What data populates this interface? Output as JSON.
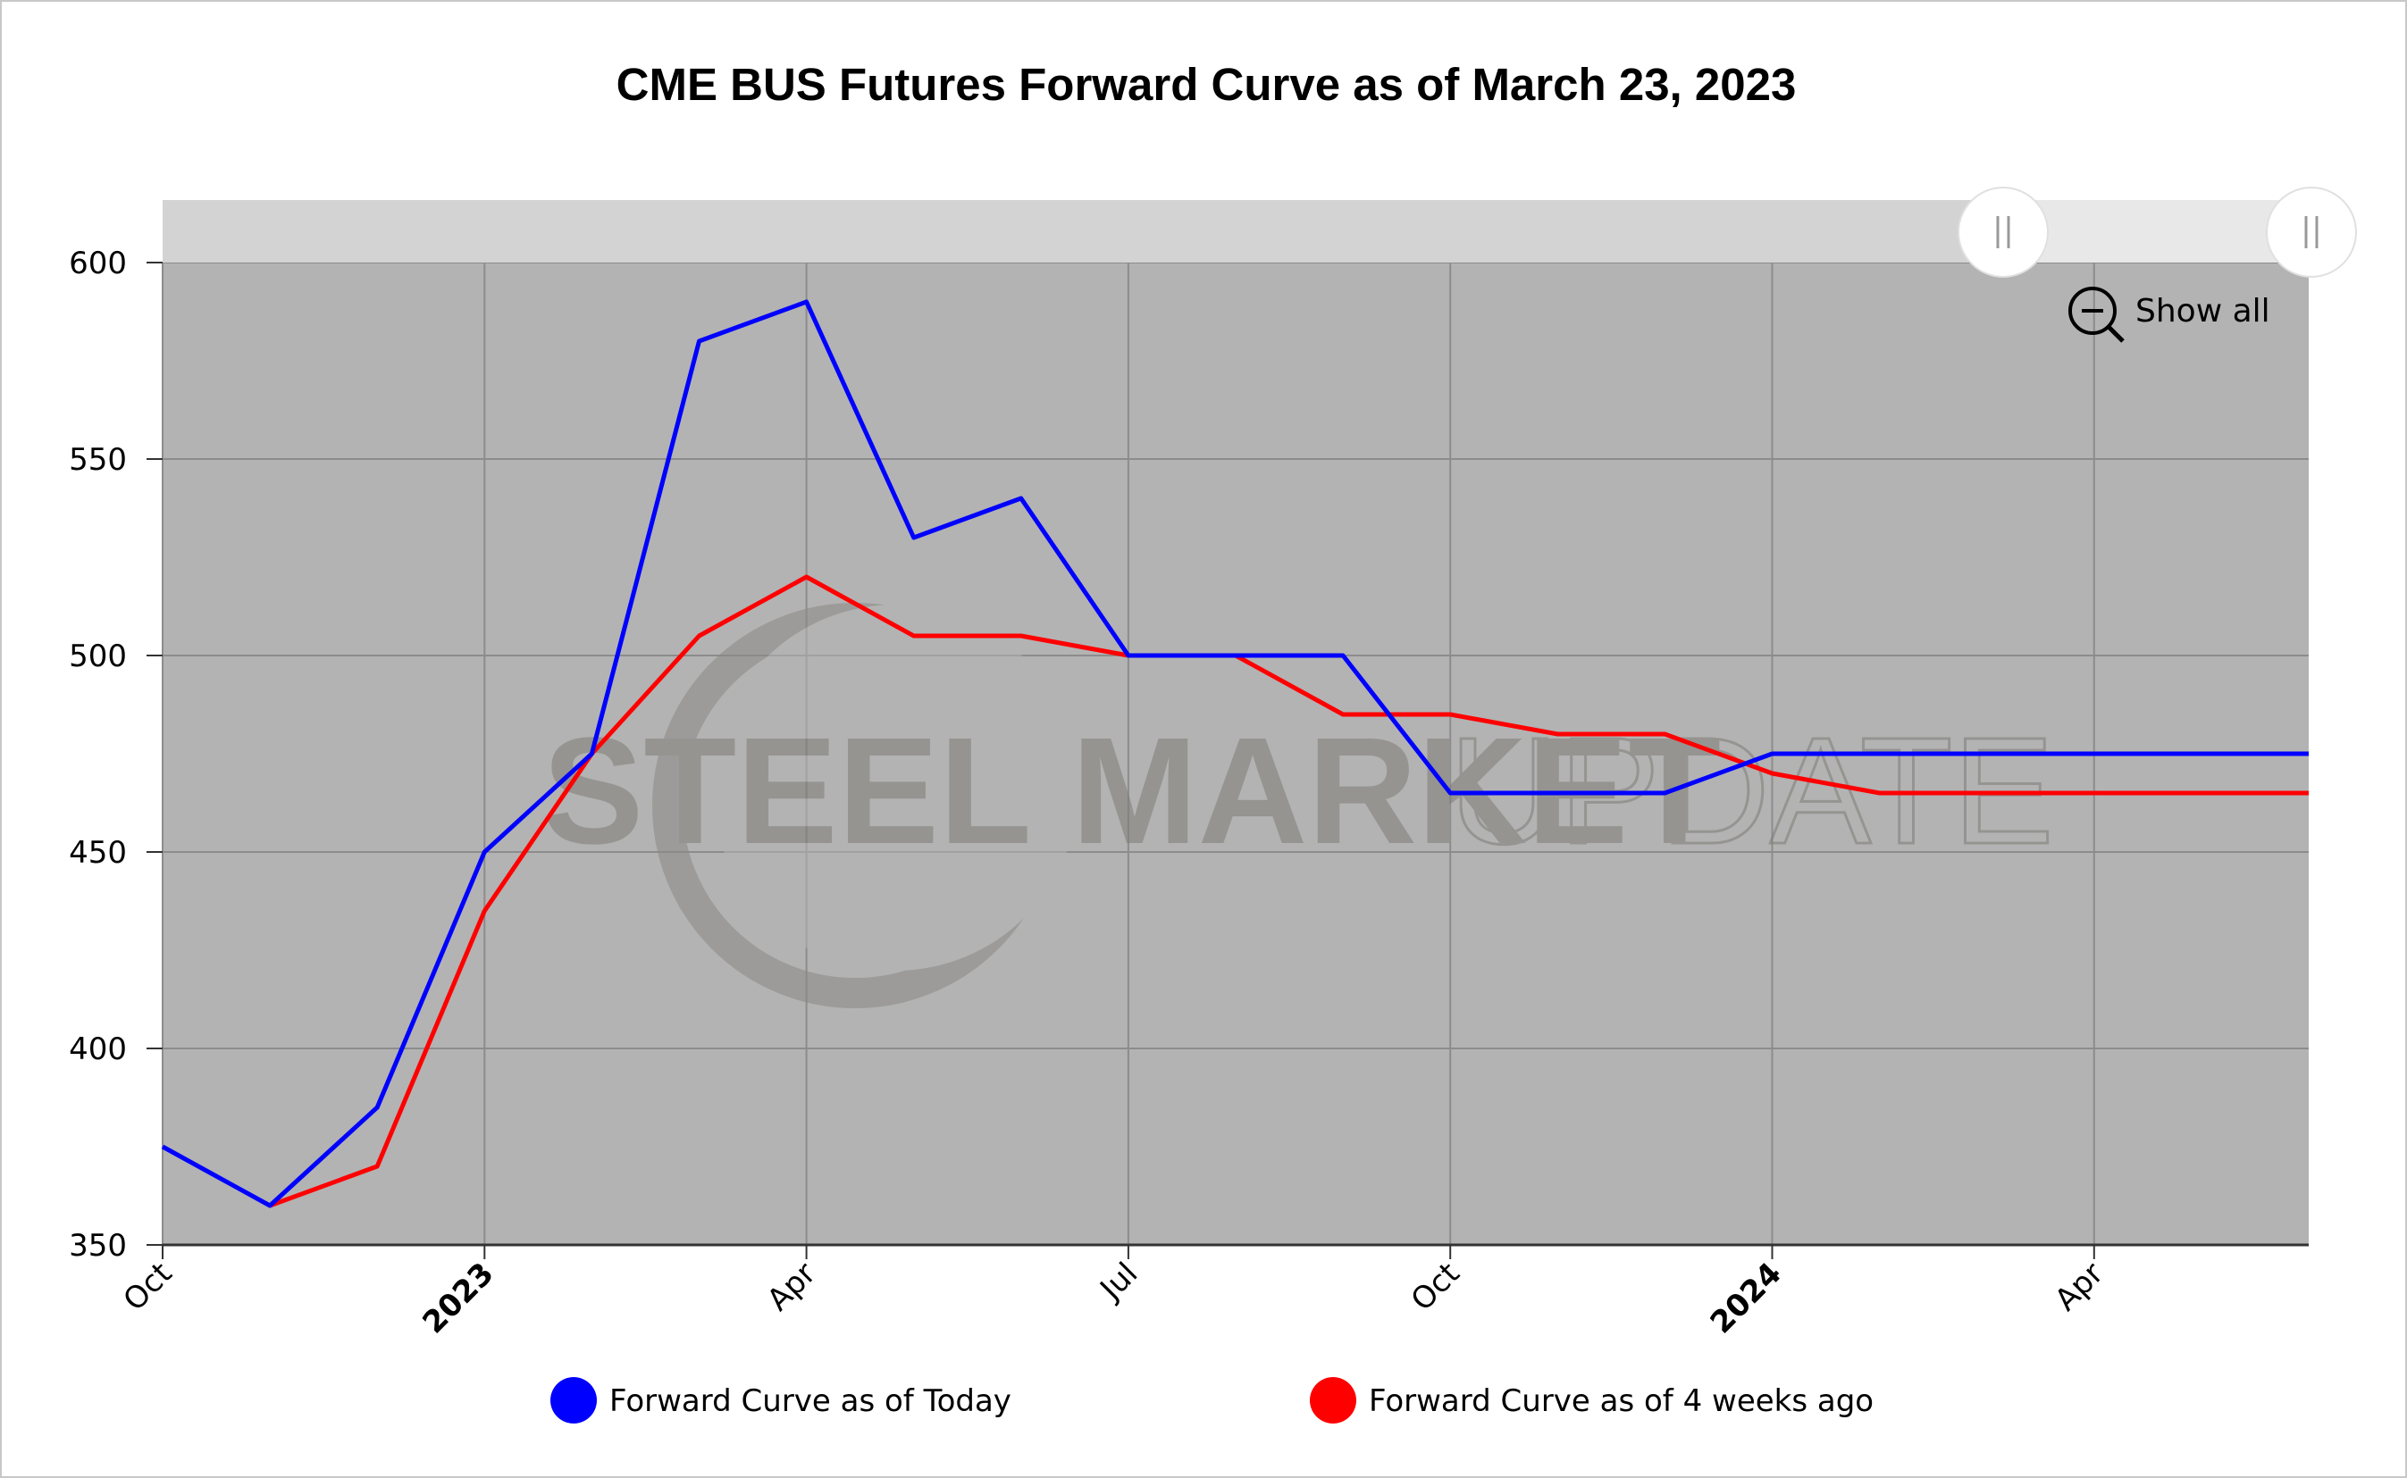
{
  "chart_data": {
    "type": "line",
    "title": "CME BUS Futures Forward Curve as of March 23, 2023",
    "xlabel": "",
    "ylabel": "",
    "x_dates": [
      "2022-10",
      "2022-11",
      "2022-12",
      "2023-01",
      "2023-02",
      "2023-03",
      "2023-04",
      "2023-05",
      "2023-06",
      "2023-07",
      "2023-08",
      "2023-09",
      "2023-10",
      "2023-11",
      "2023-12",
      "2024-01",
      "2024-02",
      "2024-03",
      "2024-04",
      "2024-05",
      "2024-06"
    ],
    "series": [
      {
        "name": "Forward Curve as of Today",
        "color": "#0000ff",
        "values": [
          375,
          360,
          385,
          450,
          475,
          580,
          590,
          530,
          540,
          500,
          500,
          500,
          465,
          465,
          465,
          475,
          475,
          475,
          475,
          475,
          475
        ]
      },
      {
        "name": "Forward Curve as of 4 weeks ago",
        "color": "#ff0000",
        "values": [
          null,
          360,
          370,
          435,
          475,
          505,
          520,
          505,
          505,
          500,
          500,
          485,
          485,
          480,
          480,
          470,
          465,
          465,
          465,
          465,
          465
        ]
      }
    ],
    "x_ticks": [
      {
        "date": "2022-10",
        "label": "Oct",
        "bold": false
      },
      {
        "date": "2023-01",
        "label": "2023",
        "bold": true
      },
      {
        "date": "2023-04",
        "label": "Apr",
        "bold": false
      },
      {
        "date": "2023-07",
        "label": "Jul",
        "bold": false
      },
      {
        "date": "2023-10",
        "label": "Oct",
        "bold": false
      },
      {
        "date": "2024-01",
        "label": "2024",
        "bold": true
      },
      {
        "date": "2024-04",
        "label": "Apr",
        "bold": false
      }
    ],
    "x_range": [
      "2022-10",
      "2024-06"
    ],
    "y_ticks": [
      350,
      400,
      450,
      500,
      550,
      600
    ],
    "ylim": [
      350,
      600
    ],
    "grid": true,
    "legend": "bottom",
    "plot_background": "#b3b3b3",
    "grid_color": "#8c8c8c"
  },
  "watermark": {
    "bold_text": "STEEL MARKET",
    "light_text": "UPDATE"
  },
  "controls": {
    "show_all_label": "Show all"
  }
}
